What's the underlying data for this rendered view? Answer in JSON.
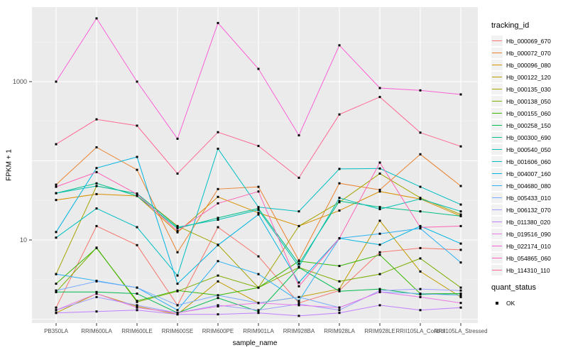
{
  "chart_data": {
    "type": "line",
    "title": "",
    "xlabel": "sample_name",
    "ylabel": "FPKM + 1",
    "y_scale": "log10",
    "ylim": [
      0.9,
      8700
    ],
    "grid": "white major gridlines on gray panel, verticals at each category",
    "legend_position": "right",
    "panel_bg": "#EBEBEB",
    "marker": {
      "shape": "square",
      "color": "#000000"
    },
    "y_ticks": [
      {
        "value": 1000,
        "label": "1000"
      },
      {
        "value": 10,
        "label": "10"
      }
    ],
    "categories": [
      "PB350LA",
      "RRIM600LA",
      "RRIM600LE",
      "RRIM600SE",
      "RRIM600PE",
      "RRIM901LA",
      "RRIM928BA",
      "RRIM928LA",
      "RRIM928LE",
      "RRII105LA_Control",
      "RRII105LA_Stressed"
    ],
    "series": [
      {
        "name": "Hb_000069_670",
        "color": "#F8766D",
        "values": [
          1.4,
          15,
          8.6,
          1.5,
          14.5,
          6.2,
          1.6,
          2.3,
          7.0,
          7.9,
          7.5
        ]
      },
      {
        "name": "Hb_000072_070",
        "color": "#EA8331",
        "values": [
          50,
          148,
          77,
          7,
          44,
          47,
          5.5,
          52,
          43,
          121,
          48
        ]
      },
      {
        "name": "Hb_000096_080",
        "color": "#D89000",
        "values": [
          32,
          38,
          36,
          12.5,
          35,
          22,
          15,
          23.5,
          41,
          33,
          20
        ]
      },
      {
        "name": "Hb_000122_120",
        "color": "#C09B00",
        "values": [
          1.2,
          2.1,
          1.45,
          1.15,
          3.0,
          1.6,
          1.9,
          2.4,
          17.5,
          4.0,
          1.9
        ]
      },
      {
        "name": "Hb_000135_030",
        "color": "#A3A500",
        "values": [
          3.7,
          48,
          38.5,
          15,
          8.7,
          2.5,
          15,
          30,
          69,
          34,
          21
        ]
      },
      {
        "name": "Hb_000138_050",
        "color": "#7CAE00",
        "values": [
          2.2,
          8,
          1.65,
          2.25,
          3.55,
          2.5,
          4.5,
          3.0,
          3.7,
          5.85,
          2.5
        ]
      },
      {
        "name": "Hb_000155_060",
        "color": "#39B600",
        "values": [
          2.8,
          7.9,
          1.7,
          2.3,
          2.0,
          2.5,
          5.4,
          4.7,
          6.5,
          2.1,
          2.1
        ]
      },
      {
        "name": "Hb_000258_150",
        "color": "#00BB4E",
        "values": [
          2.2,
          2.2,
          2.1,
          1.2,
          1.85,
          1.25,
          4.5,
          2.25,
          2.4,
          2.05,
          2.1
        ]
      },
      {
        "name": "Hb_000300_690",
        "color": "#00C087",
        "values": [
          39,
          52,
          36,
          14,
          19,
          25,
          5.0,
          31,
          26,
          23,
          20
        ]
      },
      {
        "name": "Hb_000540_050",
        "color": "#00C0B4",
        "values": [
          39,
          48,
          38.5,
          14.5,
          18,
          24,
          4.6,
          34,
          24.5,
          33,
          23
        ]
      },
      {
        "name": "Hb_001606_060",
        "color": "#00BFC4",
        "values": [
          10.7,
          25,
          14.5,
          3.55,
          142,
          26,
          23,
          79,
          80,
          47,
          28
        ]
      },
      {
        "name": "Hb_004007_160",
        "color": "#00B4E2",
        "values": [
          12.6,
          81,
          112,
          2.8,
          8.6,
          21,
          2.9,
          10.5,
          8.7,
          15,
          9
        ]
      },
      {
        "name": "Hb_004680_080",
        "color": "#2FB1F5",
        "values": [
          3.7,
          3.05,
          2.5,
          1.3,
          5.4,
          3.7,
          1.7,
          10.5,
          12,
          14,
          5.2
        ]
      },
      {
        "name": "Hb_005433_010",
        "color": "#76ACFF",
        "values": [
          2.3,
          3.0,
          2.5,
          1.5,
          2.0,
          1.6,
          1.9,
          1.4,
          2.2,
          2.1,
          2.0
        ]
      },
      {
        "name": "Hb_006132_070",
        "color": "#9F9DFF",
        "values": [
          1.3,
          1.9,
          1.5,
          1.2,
          1.5,
          1.3,
          1.55,
          1.3,
          2.3,
          2.4,
          2.3
        ]
      },
      {
        "name": "Hb_011380_020",
        "color": "#BF7FFF",
        "values": [
          1.2,
          1.25,
          1.3,
          1.15,
          1.15,
          1.2,
          1.1,
          1.2,
          1.5,
          1.3,
          1.4
        ]
      },
      {
        "name": "Hb_019516_090",
        "color": "#E878E8",
        "values": [
          1.3,
          2.1,
          1.4,
          1.2,
          1.45,
          1.6,
          1.5,
          1.4,
          2.2,
          1.9,
          1.6
        ]
      },
      {
        "name": "Hb_022174_010",
        "color": "#FB61D7",
        "values": [
          1000,
          6300,
          1000,
          190,
          5500,
          1450,
          210,
          2880,
          830,
          776,
          690
        ]
      },
      {
        "name": "Hb_054865_060",
        "color": "#FF63B6",
        "values": [
          47,
          72,
          38,
          13,
          29,
          41,
          2.6,
          10.5,
          95,
          14.4,
          15
        ]
      },
      {
        "name": "Hb_114310_110",
        "color": "#FF6B94",
        "values": [
          162,
          334,
          278,
          69,
          230,
          154,
          61,
          385,
          640,
          227,
          152
        ]
      }
    ]
  },
  "legend": {
    "tracking_title": "tracking_id",
    "quant_title": "quant_status",
    "quant_ok_label": "OK"
  }
}
